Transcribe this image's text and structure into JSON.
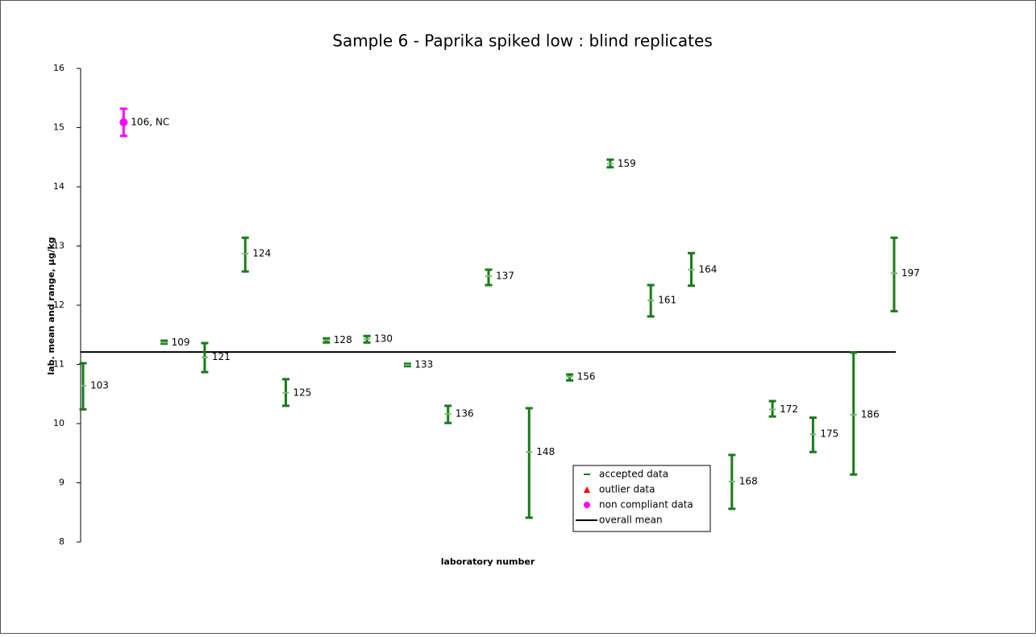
{
  "chart_data": {
    "type": "errorbar",
    "title": "Sample 6 - Paprika spiked low : blind replicates",
    "y_label": "lab. mean and range, µg/kg",
    "x_label": "laboratory number",
    "categories": [
      "103",
      "106, NC",
      "109",
      "121",
      "124",
      "125",
      "128",
      "130",
      "133",
      "136",
      "137",
      "148",
      "156",
      "159",
      "161",
      "164",
      "168",
      "172",
      "175",
      "186",
      "197"
    ],
    "series": [
      {
        "name": "accepted data",
        "color": "#1a7a1a",
        "marker": "dash",
        "values": [
          10.64,
          null,
          11.37,
          11.12,
          12.87,
          10.52,
          11.41,
          11.43,
          10.99,
          10.16,
          12.49,
          9.52,
          10.79,
          14.39,
          12.08,
          12.6,
          9.02,
          10.24,
          9.82,
          10.15,
          12.54
        ],
        "low": [
          10.24,
          null,
          11.35,
          10.87,
          12.57,
          10.3,
          11.37,
          11.37,
          10.97,
          10.01,
          12.34,
          8.41,
          10.73,
          14.33,
          11.81,
          12.33,
          8.56,
          10.12,
          9.52,
          9.14,
          11.9
        ],
        "high": [
          11.02,
          null,
          11.4,
          11.36,
          13.14,
          10.75,
          11.44,
          11.48,
          11.01,
          10.3,
          12.6,
          10.26,
          10.83,
          14.46,
          12.34,
          12.88,
          9.47,
          10.38,
          10.1,
          11.2,
          13.14
        ]
      },
      {
        "name": "outlier data",
        "color": "#ff0000",
        "marker": "triangle",
        "values": [
          null,
          null,
          null,
          null,
          null,
          null,
          null,
          null,
          null,
          null,
          null,
          null,
          null,
          null,
          null,
          null,
          null,
          null,
          null,
          null,
          null
        ],
        "low": [
          null,
          null,
          null,
          null,
          null,
          null,
          null,
          null,
          null,
          null,
          null,
          null,
          null,
          null,
          null,
          null,
          null,
          null,
          null,
          null,
          null
        ],
        "high": [
          null,
          null,
          null,
          null,
          null,
          null,
          null,
          null,
          null,
          null,
          null,
          null,
          null,
          null,
          null,
          null,
          null,
          null,
          null,
          null,
          null
        ]
      },
      {
        "name": "non compliant data",
        "color": "#ff00ff",
        "marker": "circle",
        "values": [
          null,
          15.09,
          null,
          null,
          null,
          null,
          null,
          null,
          null,
          null,
          null,
          null,
          null,
          null,
          null,
          null,
          null,
          null,
          null,
          null,
          null
        ],
        "low": [
          null,
          14.86,
          null,
          null,
          null,
          null,
          null,
          null,
          null,
          null,
          null,
          null,
          null,
          null,
          null,
          null,
          null,
          null,
          null,
          null,
          null
        ],
        "high": [
          null,
          15.32,
          null,
          null,
          null,
          null,
          null,
          null,
          null,
          null,
          null,
          null,
          null,
          null,
          null,
          null,
          null,
          null,
          null,
          null,
          null
        ]
      }
    ],
    "mean_line": {
      "name": "overall mean",
      "color": "#000000",
      "value": 11.21
    },
    "ylim": [
      8,
      16
    ],
    "yticks": [
      8,
      9,
      10,
      11,
      12,
      13,
      14,
      15,
      16
    ],
    "grid": false,
    "legend": "bottom-center"
  }
}
